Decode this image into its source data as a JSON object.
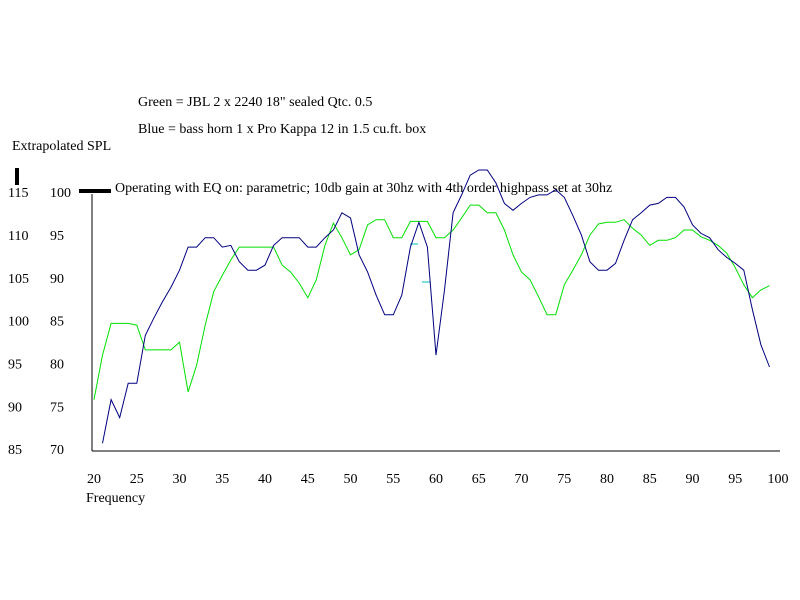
{
  "chart_data": {
    "type": "line",
    "title": "Green = JBL 2 x 2240 18\" sealed Qtc. 0.5",
    "subtitle": "Blue = bass horn 1 x Pro Kappa 12 in 1.5 cu.ft. box",
    "y_label": "Extrapolated SPL",
    "x_label": "Frequency",
    "annotation": "Operating with EQ on: parametric; 10db gain at 30hz with 4th order highpass set at 30hz",
    "x": [
      20,
      21,
      22,
      23,
      24,
      25,
      26,
      27,
      28,
      29,
      30,
      31,
      32,
      33,
      34,
      35,
      36,
      37,
      38,
      39,
      40,
      41,
      42,
      43,
      44,
      45,
      46,
      47,
      48,
      49,
      50,
      51,
      52,
      53,
      54,
      55,
      56,
      57,
      58,
      59,
      60,
      61,
      62,
      63,
      64,
      65,
      66,
      67,
      68,
      69,
      70,
      71,
      72,
      73,
      74,
      75,
      76,
      77,
      78,
      79,
      80,
      81,
      82,
      83,
      84,
      85,
      86,
      87,
      88,
      89,
      90,
      91,
      92,
      93,
      94,
      95,
      96,
      97,
      98,
      99
    ],
    "series": [
      {
        "name": "Green",
        "color": "#00e000",
        "values": [
          76.0,
          81.2,
          84.9,
          84.9,
          84.9,
          84.7,
          81.8,
          81.8,
          81.8,
          81.8,
          82.7,
          76.9,
          80.0,
          84.7,
          88.6,
          90.5,
          92.3,
          93.8,
          93.8,
          93.8,
          93.8,
          93.8,
          91.7,
          90.9,
          89.6,
          87.9,
          90.0,
          94.0,
          96.6,
          94.9,
          92.9,
          93.5,
          96.4,
          97.0,
          97.0,
          94.9,
          94.9,
          96.8,
          96.8,
          96.8,
          94.9,
          94.9,
          95.8,
          97.2,
          98.7,
          98.7,
          97.8,
          97.8,
          95.8,
          92.9,
          90.9,
          90.0,
          88.0,
          85.9,
          85.9,
          89.4,
          91.1,
          92.9,
          95.2,
          96.5,
          96.7,
          96.7,
          97.0,
          96.0,
          95.2,
          94.0,
          94.6,
          94.6,
          94.9,
          95.8,
          95.8,
          95.0,
          94.6,
          94.0,
          93.1,
          91.4,
          89.4,
          87.9,
          88.8,
          89.3
        ]
      },
      {
        "name": "Blue",
        "color": "#000080",
        "values": [
          null,
          70.9,
          76.0,
          73.9,
          77.9,
          77.9,
          83.5,
          85.5,
          87.4,
          89.1,
          91.1,
          93.8,
          93.8,
          94.9,
          94.9,
          93.8,
          94.0,
          92.1,
          91.1,
          91.1,
          91.7,
          94.0,
          94.9,
          94.9,
          94.9,
          93.8,
          93.8,
          94.9,
          95.8,
          97.8,
          97.2,
          92.9,
          90.9,
          88.2,
          85.9,
          85.9,
          88.2,
          93.8,
          96.7,
          93.8,
          81.2,
          88.8,
          97.8,
          99.9,
          102.2,
          102.8,
          102.8,
          101.3,
          98.9,
          98.1,
          98.9,
          99.6,
          99.9,
          99.9,
          100.5,
          99.6,
          97.5,
          95.2,
          92.1,
          91.1,
          91.1,
          91.9,
          94.6,
          97.0,
          97.8,
          98.7,
          98.9,
          99.6,
          99.6,
          98.5,
          96.4,
          95.4,
          94.9,
          93.5,
          92.6,
          91.9,
          91.1,
          86.5,
          82.4,
          79.8
        ]
      }
    ],
    "xlim": [
      20,
      100
    ],
    "xticks": [
      20,
      25,
      30,
      35,
      40,
      45,
      50,
      55,
      60,
      65,
      70,
      75,
      80,
      85,
      90,
      95,
      100
    ],
    "ylim": [
      70,
      100
    ],
    "yticks": [
      70,
      75,
      80,
      85,
      90,
      95,
      100
    ],
    "y2lim": [
      85,
      115
    ],
    "y2ticks": [
      85,
      90,
      95,
      100,
      105,
      110,
      115
    ],
    "grid": false
  }
}
